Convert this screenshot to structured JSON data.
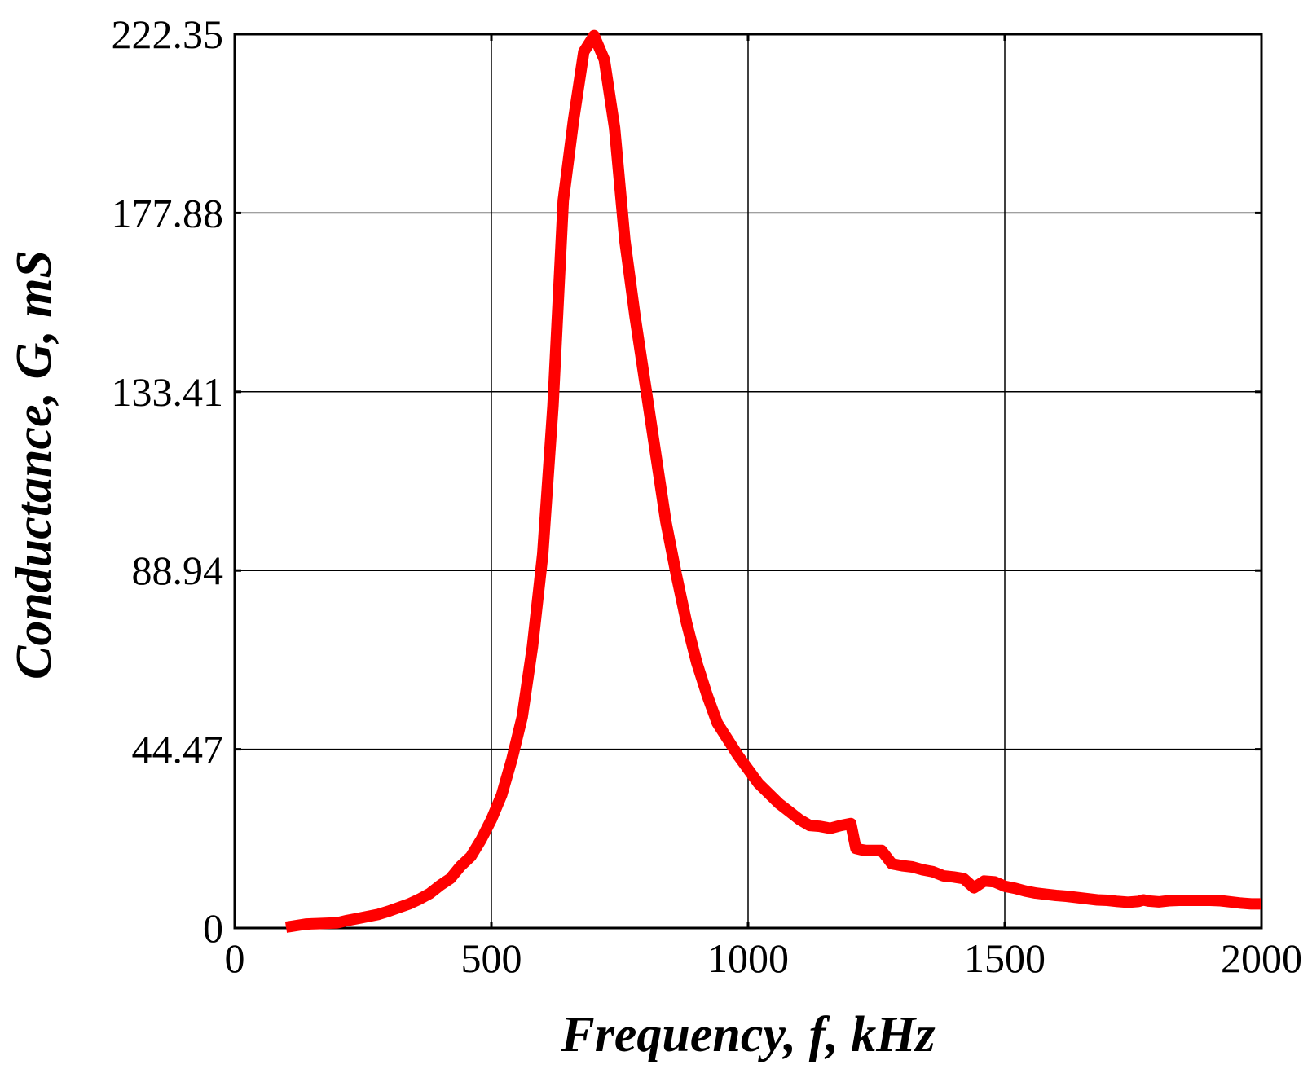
{
  "chart_data": {
    "type": "line",
    "title": "",
    "xlabel": "Frequency, f, kHz",
    "ylabel": "Conductance, G, mS",
    "xlim": [
      0,
      2000
    ],
    "ylim": [
      0,
      222.35
    ],
    "x_ticks": [
      0,
      500,
      1000,
      1500,
      2000
    ],
    "x_tick_labels": [
      "0",
      "500",
      "1000",
      "1500",
      "2000"
    ],
    "y_ticks": [
      0,
      44.47,
      88.94,
      133.41,
      177.88,
      222.35
    ],
    "y_tick_labels": [
      "0",
      "44.47",
      "88.94",
      "133.41",
      "177.88",
      "222.35"
    ],
    "grid": true,
    "legend": "none",
    "series": [
      {
        "color": "#ff0000",
        "x": [
          100,
          120,
          140,
          160,
          180,
          200,
          220,
          240,
          260,
          280,
          300,
          320,
          340,
          360,
          380,
          400,
          420,
          440,
          460,
          480,
          500,
          520,
          540,
          560,
          580,
          600,
          620,
          640,
          660,
          680,
          700,
          720,
          740,
          760,
          780,
          800,
          820,
          840,
          860,
          880,
          900,
          920,
          940,
          960,
          980,
          1000,
          1020,
          1040,
          1060,
          1080,
          1100,
          1120,
          1140,
          1160,
          1180,
          1200,
          1210,
          1220,
          1230,
          1240,
          1260,
          1280,
          1300,
          1320,
          1340,
          1360,
          1380,
          1400,
          1420,
          1440,
          1460,
          1470,
          1480,
          1500,
          1520,
          1540,
          1560,
          1580,
          1600,
          1620,
          1640,
          1660,
          1680,
          1700,
          1720,
          1740,
          1760,
          1770,
          1780,
          1800,
          1820,
          1840,
          1860,
          1880,
          1900,
          1920,
          1940,
          1960,
          1980,
          2000
        ],
        "y": [
          0.2,
          0.6,
          1.0,
          1.1,
          1.2,
          1.3,
          1.9,
          2.4,
          2.9,
          3.4,
          4.2,
          5.1,
          6.0,
          7.2,
          8.6,
          10.6,
          12.3,
          15.4,
          17.8,
          22.0,
          27.0,
          33.1,
          42.0,
          52.5,
          70.0,
          93.0,
          130.0,
          181.0,
          201.0,
          218.0,
          222.0,
          216.0,
          199.0,
          171.0,
          152.0,
          135.0,
          118.0,
          101.0,
          88.0,
          76.0,
          66.0,
          58.0,
          51.0,
          47.0,
          43.0,
          39.5,
          36.0,
          33.5,
          31.0,
          29.0,
          27.0,
          25.5,
          25.3,
          24.8,
          25.5,
          26.0,
          19.8,
          19.5,
          19.3,
          19.3,
          19.3,
          16.0,
          15.5,
          15.2,
          14.5,
          14.0,
          13.0,
          12.7,
          12.3,
          10.0,
          11.7,
          11.6,
          11.5,
          10.4,
          9.9,
          9.2,
          8.7,
          8.4,
          8.1,
          7.9,
          7.6,
          7.3,
          7.0,
          6.9,
          6.6,
          6.4,
          6.6,
          7.0,
          6.7,
          6.5,
          6.8,
          6.9,
          6.9,
          6.9,
          6.9,
          6.8,
          6.5,
          6.2,
          6.0,
          6.0
        ]
      }
    ]
  }
}
